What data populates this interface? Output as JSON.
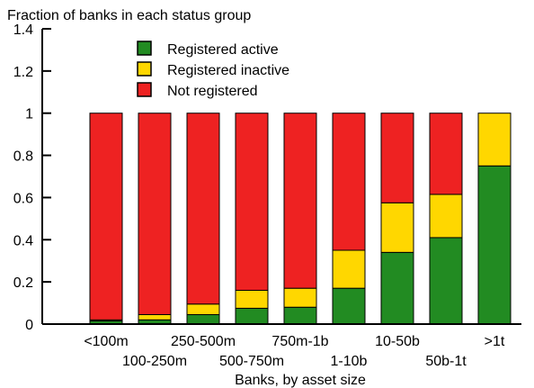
{
  "chart_data": {
    "type": "bar",
    "stacked": true,
    "title": "Fraction of banks in each status group",
    "xlabel": "Banks, by asset size",
    "ylabel": "",
    "ylim": [
      0,
      1.4
    ],
    "yticks": [
      "0",
      "0.2",
      "0.4",
      "0.6",
      "0.8",
      "1",
      "1.2",
      "1.4"
    ],
    "categories": [
      "<100m",
      "100-250m",
      "250-500m",
      "500-750m",
      "750m-1b",
      "1-10b",
      "10-50b",
      "50b-1t",
      ">1t"
    ],
    "series": [
      {
        "name": "Registered active",
        "color": "#228b22",
        "values": [
          0.015,
          0.02,
          0.045,
          0.075,
          0.08,
          0.17,
          0.34,
          0.41,
          0.75
        ]
      },
      {
        "name": "Registered inactive",
        "color": "#ffd700",
        "values": [
          0.005,
          0.025,
          0.05,
          0.085,
          0.09,
          0.18,
          0.235,
          0.205,
          0.25
        ]
      },
      {
        "name": "Not registered",
        "color": "#ee2222",
        "values": [
          0.98,
          0.955,
          0.905,
          0.84,
          0.83,
          0.65,
          0.425,
          0.385,
          0.0
        ]
      }
    ],
    "legend": "top-left",
    "grid": false
  }
}
